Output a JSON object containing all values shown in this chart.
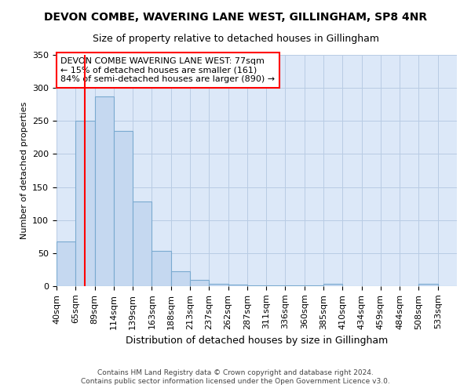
{
  "title1": "DEVON COMBE, WAVERING LANE WEST, GILLINGHAM, SP8 4NR",
  "title2": "Size of property relative to detached houses in Gillingham",
  "xlabel": "Distribution of detached houses by size in Gillingham",
  "ylabel": "Number of detached properties",
  "footnote1": "Contains HM Land Registry data © Crown copyright and database right 2024.",
  "footnote2": "Contains public sector information licensed under the Open Government Licence v3.0.",
  "bin_labels": [
    "40sqm",
    "65sqm",
    "89sqm",
    "114sqm",
    "139sqm",
    "163sqm",
    "188sqm",
    "213sqm",
    "237sqm",
    "262sqm",
    "287sqm",
    "311sqm",
    "336sqm",
    "360sqm",
    "385sqm",
    "410sqm",
    "434sqm",
    "459sqm",
    "484sqm",
    "508sqm",
    "533sqm"
  ],
  "bar_values": [
    68,
    250,
    287,
    235,
    128,
    53,
    22,
    10,
    4,
    2,
    1,
    1,
    1,
    1,
    3,
    0,
    0,
    0,
    0,
    3,
    0
  ],
  "bar_color": "#c5d8f0",
  "bar_edge_color": "#7aaad0",
  "vline_color": "red",
  "vline_pos": 1.5,
  "annotation_title": "DEVON COMBE WAVERING LANE WEST: 77sqm",
  "annotation_line1": "← 15% of detached houses are smaller (161)",
  "annotation_line2": "84% of semi-detached houses are larger (890) →",
  "ylim": [
    0,
    350
  ],
  "yticks": [
    0,
    50,
    100,
    150,
    200,
    250,
    300,
    350
  ],
  "background_color": "#dce8f8",
  "grid_color": "#b8cce4",
  "title1_fontsize": 10,
  "title2_fontsize": 9,
  "xlabel_fontsize": 9,
  "ylabel_fontsize": 8,
  "tick_fontsize": 8,
  "annot_fontsize": 8,
  "footnote_fontsize": 6.5
}
